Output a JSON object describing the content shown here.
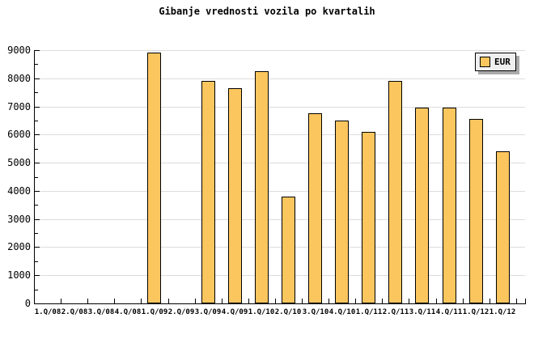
{
  "chart_data": {
    "type": "bar",
    "title": "Gibanje vrednosti vozila po kvartalih",
    "xlabel": "",
    "ylabel": "",
    "categories": [
      "1.Q/08",
      "2.Q/08",
      "3.Q/08",
      "4.Q/08",
      "1.Q/09",
      "2.Q/09",
      "3.Q/09",
      "4.Q/09",
      "1.Q/10",
      "2.Q/10",
      "3.Q/10",
      "4.Q/10",
      "1.Q/11",
      "2.Q/11",
      "3.Q/11",
      "4.Q/11",
      "1.Q/12",
      "1.Q/12"
    ],
    "values": [
      null,
      null,
      null,
      null,
      8900,
      null,
      7900,
      7650,
      8250,
      3800,
      6750,
      6500,
      6100,
      7900,
      6950,
      6950,
      6550,
      5400
    ],
    "series_name": "EUR",
    "legend_label": "EUR",
    "legend_position": "top-right",
    "ylim": [
      0,
      9000
    ],
    "ytick_step": 1000,
    "yminor_step": 500,
    "grid": "horizontal-major",
    "colors": {
      "bar_fill": "#FCC65E",
      "bar_border": "#000000",
      "grid": "#DCDCDC",
      "axis": "#000000",
      "legend_bg": "#EFEFEF",
      "legend_shadow": "#AAAAAA",
      "background": "#FFFFFF"
    }
  }
}
